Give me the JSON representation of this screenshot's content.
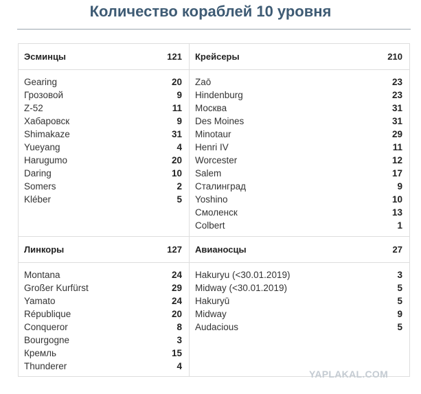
{
  "header": {
    "title": "Количество кораблей 10 уровня"
  },
  "sections": [
    {
      "name": "Эсминцы",
      "total": 121,
      "ships": [
        {
          "name": "Gearing",
          "count": 20
        },
        {
          "name": "Грозовой",
          "count": 9
        },
        {
          "name": "Z-52",
          "count": 11
        },
        {
          "name": "Хабаровск",
          "count": 9
        },
        {
          "name": "Shimakaze",
          "count": 31
        },
        {
          "name": "Yueyang",
          "count": 4
        },
        {
          "name": "Harugumo",
          "count": 20
        },
        {
          "name": "Daring",
          "count": 10
        },
        {
          "name": "Somers",
          "count": 2
        },
        {
          "name": "Kléber",
          "count": 5
        }
      ]
    },
    {
      "name": "Крейсеры",
      "total": 210,
      "ships": [
        {
          "name": "Zaō",
          "count": 23
        },
        {
          "name": "Hindenburg",
          "count": 23
        },
        {
          "name": "Москва",
          "count": 31
        },
        {
          "name": "Des Moines",
          "count": 31
        },
        {
          "name": "Minotaur",
          "count": 29
        },
        {
          "name": "Henri IV",
          "count": 11
        },
        {
          "name": "Worcester",
          "count": 12
        },
        {
          "name": "Salem",
          "count": 17
        },
        {
          "name": "Сталинград",
          "count": 9
        },
        {
          "name": "Yoshino",
          "count": 10
        },
        {
          "name": "Смоленск",
          "count": 13
        },
        {
          "name": "Colbert",
          "count": 1
        }
      ]
    },
    {
      "name": "Линкоры",
      "total": 127,
      "ships": [
        {
          "name": "Montana",
          "count": 24
        },
        {
          "name": "Großer Kurfürst",
          "count": 29
        },
        {
          "name": "Yamato",
          "count": 24
        },
        {
          "name": "République",
          "count": 20
        },
        {
          "name": "Conqueror",
          "count": 8
        },
        {
          "name": "Bourgogne",
          "count": 3
        },
        {
          "name": "Кремль",
          "count": 15
        },
        {
          "name": "Thunderer",
          "count": 4
        }
      ]
    },
    {
      "name": "Авианосцы",
      "total": 27,
      "ships": [
        {
          "name": "Hakuryu (<30.01.2019)",
          "count": 3
        },
        {
          "name": "Midway (<30.01.2019)",
          "count": 5
        },
        {
          "name": "Hakuryū",
          "count": 5
        },
        {
          "name": "Midway",
          "count": 9
        },
        {
          "name": "Audacious",
          "count": 5
        }
      ]
    }
  ],
  "watermark": "YAPLAKAL.COM"
}
